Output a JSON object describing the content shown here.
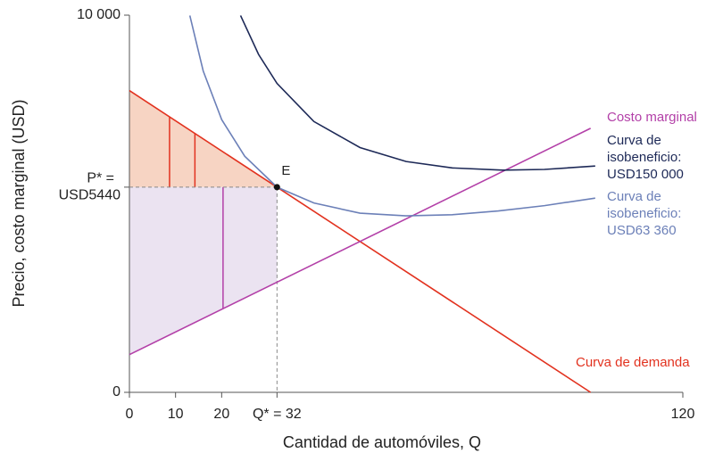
{
  "chart_data": {
    "type": "line",
    "xlabel": "Cantidad de automóviles, Q",
    "ylabel": "Precio, costo marginal (USD)",
    "xlim": [
      0,
      120
    ],
    "ylim": [
      0,
      10000
    ],
    "xticks": [
      0,
      10,
      20,
      {
        "value": 32,
        "label": "Q* = 32"
      },
      120
    ],
    "yticks": [
      0,
      {
        "value": 5440,
        "label": [
          "P* =",
          "USD5440"
        ]
      },
      {
        "value": 10000,
        "label": "10 000"
      }
    ],
    "series": [
      {
        "name": [
          "Curva de demanda"
        ],
        "color": "#e2321f",
        "x": [
          0,
          100
        ],
        "values": [
          8000,
          0
        ]
      },
      {
        "name": [
          "Costo marginal"
        ],
        "color": "#b340a8",
        "x": [
          0,
          100
        ],
        "values": [
          1000,
          7000
        ]
      },
      {
        "name": [
          "Curva de",
          "isobeneficio:",
          "USD150 000"
        ],
        "color": "#1d2957",
        "x": [
          24.1,
          28,
          32,
          40,
          50,
          60,
          70,
          81,
          90,
          101
        ],
        "values": [
          9990,
          8960,
          8190,
          7180,
          6490,
          6120,
          5950,
          5890,
          5910,
          6000
        ]
      },
      {
        "name": [
          "Curva de",
          "isobeneficio:",
          "USD63 360"
        ],
        "color": "#6c80b8",
        "x": [
          13.1,
          16,
          20,
          25,
          32,
          40,
          50,
          60,
          70,
          80,
          90,
          101
        ],
        "values": [
          9990,
          8520,
          7232,
          6260,
          5440,
          5020,
          4750,
          4680,
          4710,
          4810,
          4950,
          5150
        ]
      }
    ],
    "equilibrium": {
      "label": "E",
      "q": 32,
      "p": 5440
    },
    "surplus_lines_x": [
      8.7,
      14.2
    ],
    "profit_lines_x": [
      20.3
    ]
  }
}
